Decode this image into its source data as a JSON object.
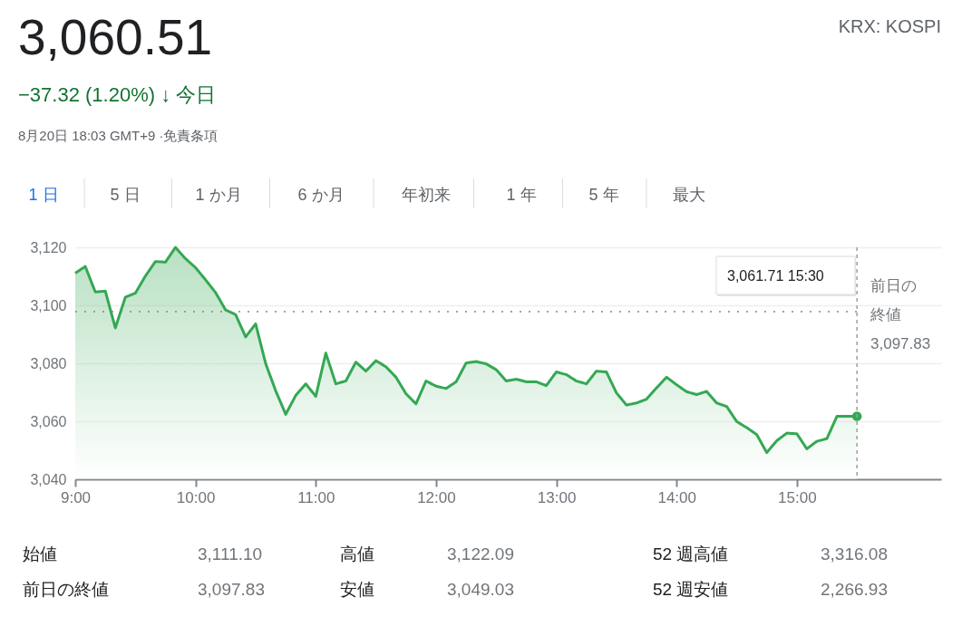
{
  "chart_data": {
    "type": "area",
    "title": "3,060.51",
    "subtitle": "−37.32 (1.20%) ↓ 今日",
    "x": [
      9,
      9.0833,
      9.1667,
      9.25,
      9.3333,
      9.4167,
      9.5,
      9.5833,
      9.6667,
      9.75,
      9.8333,
      9.9167,
      10,
      10.0833,
      10.1667,
      10.25,
      10.3333,
      10.4167,
      10.5,
      10.5833,
      10.6667,
      10.75,
      10.8333,
      10.9167,
      11,
      11.0833,
      11.1667,
      11.25,
      11.3333,
      11.4167,
      11.5,
      11.5833,
      11.6667,
      11.75,
      11.8333,
      11.9167,
      12,
      12.0833,
      12.1667,
      12.25,
      12.3333,
      12.4167,
      12.5,
      12.5833,
      12.6667,
      12.75,
      12.8333,
      12.9167,
      13,
      13.0833,
      13.1667,
      13.25,
      13.3333,
      13.4167,
      13.5,
      13.5833,
      13.6667,
      13.75,
      13.8333,
      13.9167,
      14,
      14.0833,
      14.1667,
      14.25,
      14.3333,
      14.4167,
      14.5,
      14.5833,
      14.6667,
      14.75,
      14.8333,
      14.9167,
      15,
      15.0833,
      15.1667,
      15.25,
      15.3333,
      15.4167,
      15.5
    ],
    "series": [
      {
        "color": "#34a853",
        "values": [
          3111.1,
          3113.4,
          3104.6,
          3104.9,
          3092.2,
          3102.8,
          3104.2,
          3110.1,
          3115.1,
          3114.9,
          3120,
          3116.1,
          3113.0,
          3108.8,
          3104.4,
          3098.4,
          3096.8,
          3089.1,
          3093.6,
          3079.9,
          3070.5,
          3062.4,
          3068.9,
          3072.9,
          3068.6,
          3083.5,
          3072.9,
          3073.9,
          3080.4,
          3077.3,
          3080.9,
          3078.8,
          3075.2,
          3069.5,
          3066.0,
          3073.9,
          3072.1,
          3071.3,
          3073.6,
          3080.1,
          3080.6,
          3079.8,
          3077.8,
          3073.9,
          3074.5,
          3073.6,
          3073.6,
          3072.3,
          3077.0,
          3076.1,
          3073.9,
          3072.9,
          3077.3,
          3077.0,
          3069.8,
          3065.6,
          3066.3,
          3067.6,
          3071.5,
          3075.2,
          3072.6,
          3070.2,
          3069.2,
          3070.3,
          3066.3,
          3065.1,
          3059.9,
          3057.8,
          3055.4,
          3049.2,
          3053.3,
          3055.9,
          3055.7,
          3050.5,
          3053.1,
          3054.0,
          3061.7,
          3061.7,
          3061.7
        ]
      },
      {
        "type": "scatter",
        "color": "#34a853",
        "marker": "circle",
        "x": [
          15.5
        ],
        "values": [
          3061.7
        ]
      }
    ],
    "xlim": [
      9,
      16.2
    ],
    "xticks": [
      {
        "value": 9,
        "label": "9:00"
      },
      {
        "value": 10,
        "label": "10:00"
      },
      {
        "value": 11,
        "label": "11:00"
      },
      {
        "value": 12,
        "label": "12:00"
      },
      {
        "value": 13,
        "label": "13:00"
      },
      {
        "value": 14,
        "label": "14:00"
      },
      {
        "value": 15,
        "label": "15:00"
      }
    ],
    "ylim": [
      3040,
      3120
    ],
    "yticks": [
      {
        "value": 3040,
        "label": "3,040"
      },
      {
        "value": 3060,
        "label": "3,060"
      },
      {
        "value": 3080,
        "label": "3,080"
      },
      {
        "value": 3100,
        "label": "3,100"
      },
      {
        "value": 3120,
        "label": "3,120"
      }
    ],
    "grid": "y",
    "ref_lines": [
      {
        "axis": "y",
        "value": 3097.83,
        "label": "前日の終値\n3,097.83",
        "line_style": "dotted",
        "color": "#80868b"
      },
      {
        "axis": "x",
        "value": 15.5,
        "line_style": "dashed",
        "color": "#9aa0a6"
      }
    ],
    "annotations": [
      "KRX: KOSPI",
      "8月20日 18:03 GMT+9 ·免責条項",
      "1 日",
      "5 日",
      "1 か月",
      "6 か月",
      "年初来",
      "1 年",
      "5 年",
      "最大",
      "3,061.71  15:30",
      "始値",
      "3,111.10",
      "高値",
      "3,122.09",
      "52 週高値",
      "3,316.08",
      "前日の終値",
      "3,097.83",
      "安値",
      "3,049.03",
      "52 週安値",
      "2,266.93"
    ]
  }
}
